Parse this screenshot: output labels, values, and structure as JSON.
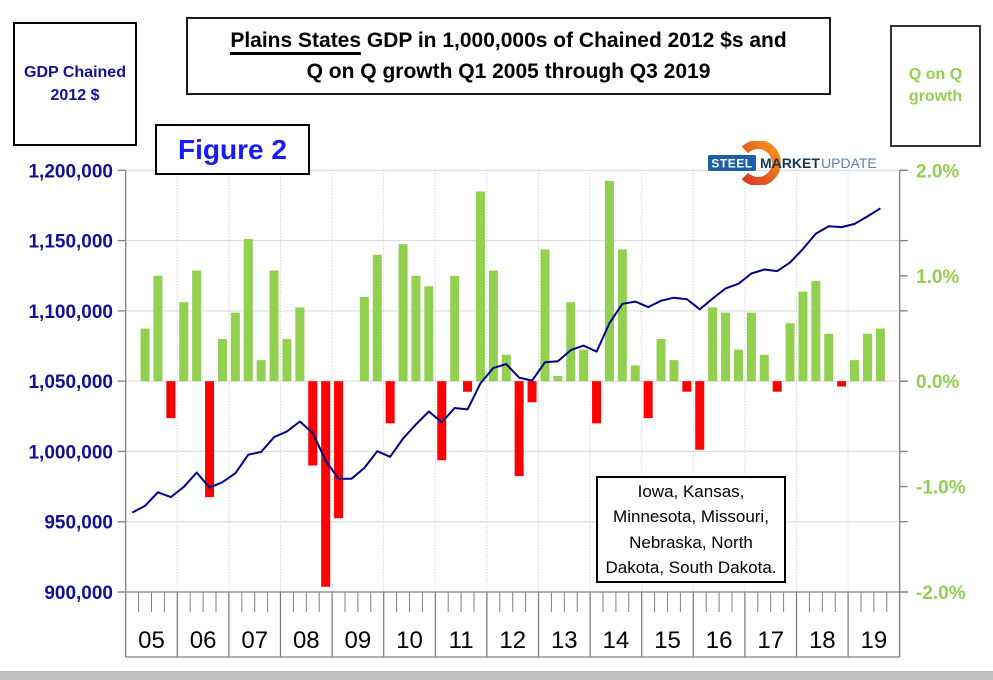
{
  "title": {
    "emphasis": "Plains States",
    "line1_rest": " GDP in 1,000,000s of Chained 2012 $s and",
    "line2": "Q on Q growth Q1 2005 through Q3 2019"
  },
  "figure_label": "Figure 2",
  "left_axis_box": {
    "line1": "GDP Chained",
    "line2": "2012 $"
  },
  "right_axis_box": {
    "line1": "Q on Q",
    "line2": "growth"
  },
  "logo": {
    "part1": "STEEL",
    "part2": "MARKET",
    "part3": "UPDATE"
  },
  "states_note": {
    "lines": [
      "Iowa, Kansas,",
      "Minnesota, Missouri,",
      "Nebraska, North",
      "Dakota, South Dakota."
    ]
  },
  "colors": {
    "bar_green": "#92d050",
    "bar_red": "#ff0000",
    "line_navy": "#00008b",
    "axis_text_navy": "#10109c",
    "axis_text_green": "#92d050",
    "grid": "#d9d9d9",
    "year_divider": "#c8c8c8",
    "axis_gray": "#808080",
    "logo_dark_blue": "#17365d",
    "logo_light_blue": "#5b84b1",
    "logo_box_blue": "#1b5faa",
    "logo_orange_dark": "#d93a26",
    "logo_orange_light": "#f7941d"
  },
  "chart_data": {
    "type": [
      "bar",
      "line"
    ],
    "title": "Plains States GDP in 1,000,000s of Chained 2012 $s and Q on Q growth Q1 2005 through Q3 2019",
    "x_axis": {
      "years": [
        "05",
        "06",
        "07",
        "08",
        "09",
        "10",
        "11",
        "12",
        "13",
        "14",
        "15",
        "16",
        "17",
        "18",
        "19"
      ]
    },
    "left_axis": {
      "label": "GDP Chained 2012 $",
      "tick_labels": [
        "1,200,000",
        "1,150,000",
        "1,100,000",
        "1,050,000",
        "1,000,000",
        "950,000",
        "900,000"
      ],
      "tick_values": [
        1200000,
        1150000,
        1100000,
        1050000,
        1000000,
        950000,
        900000
      ],
      "range": [
        900000,
        1200000
      ]
    },
    "right_axis": {
      "label": "Q on Q growth",
      "tick_labels": [
        "2.0%",
        "1.0%",
        "0.0%",
        "-1.0%",
        "-2.0%"
      ],
      "tick_values": [
        2,
        1,
        0,
        -1,
        -2
      ],
      "range": [
        -2,
        2
      ]
    },
    "bars_start_quarter": "2005Q2",
    "growth_pct_q_on_q": [
      0.5,
      1.0,
      -0.35,
      0.75,
      1.05,
      -1.1,
      0.4,
      0.65,
      1.35,
      0.2,
      1.05,
      0.4,
      0.7,
      -0.8,
      -1.95,
      -1.3,
      0.0,
      0.8,
      1.2,
      -0.4,
      1.3,
      1.0,
      0.9,
      -0.75,
      1.0,
      -0.1,
      1.8,
      1.05,
      0.25,
      -0.9,
      -0.2,
      1.25,
      0.05,
      0.75,
      0.3,
      -0.4,
      1.9,
      1.25,
      0.15,
      -0.35,
      0.4,
      0.2,
      -0.1,
      -0.65,
      0.7,
      0.65,
      0.3,
      0.65,
      0.25,
      -0.1,
      0.55,
      0.85,
      0.95,
      0.45,
      -0.05,
      0.2,
      0.45,
      0.5
    ],
    "line_start_quarter": "2005Q1",
    "gdp_chained_2012": [
      956500,
      961300,
      970900,
      967500,
      974800,
      985000,
      974200,
      978100,
      984500,
      997700,
      999700,
      1010200,
      1014200,
      1021300,
      1013100,
      993400,
      980500,
      980500,
      988300,
      1000200,
      996200,
      1009200,
      1019200,
      1028400,
      1020700,
      1030900,
      1029900,
      1048400,
      1059400,
      1062100,
      1052500,
      1050400,
      1063500,
      1064100,
      1072100,
      1075300,
      1071000,
      1091300,
      1105000,
      1106600,
      1102700,
      1107200,
      1109400,
      1108300,
      1101100,
      1108800,
      1116000,
      1119300,
      1126600,
      1129400,
      1128300,
      1134500,
      1144100,
      1155000,
      1160200,
      1159600,
      1161900,
      1167200,
      1173000
    ],
    "grid": "horizontal gridlines every 50,000; dotted vertical year dividers",
    "legend_position": "none"
  }
}
